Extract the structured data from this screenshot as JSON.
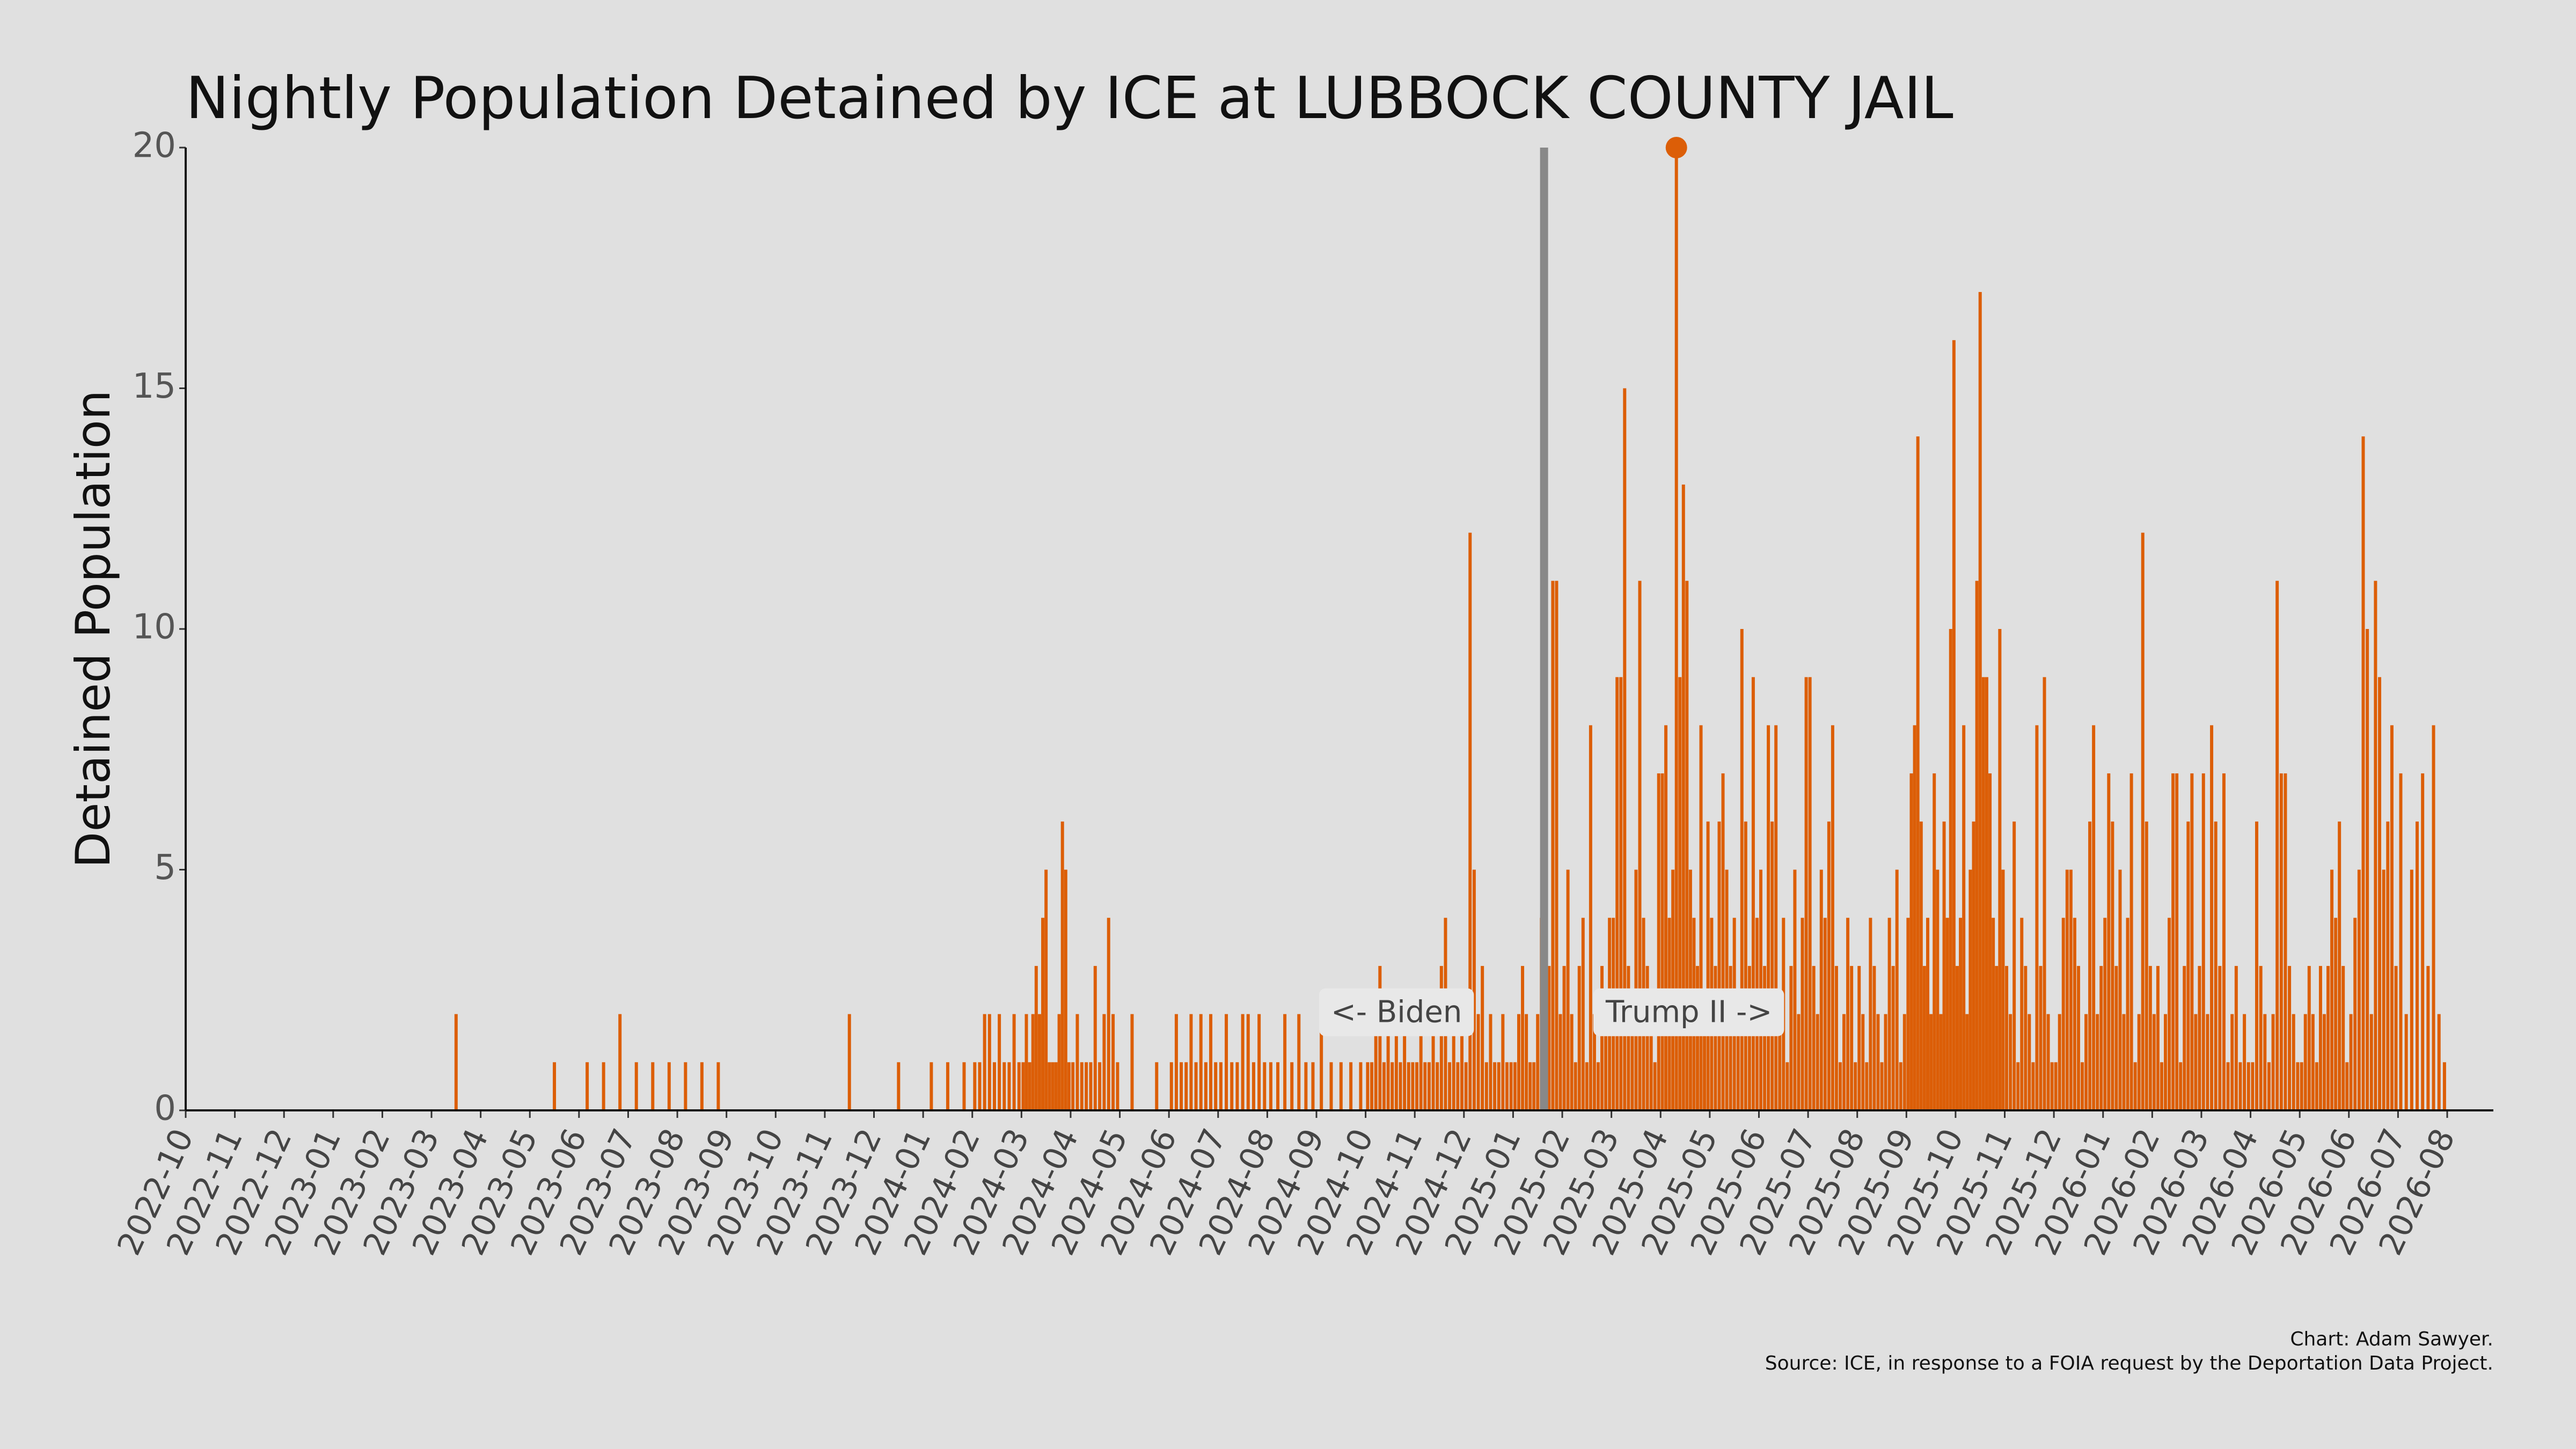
{
  "chart_data": {
    "type": "bar",
    "title": "Nightly Population Detained by ICE at LUBBOCK COUNTY JAIL",
    "y_label": "Detained Population",
    "color": "#dc5e07",
    "ylim": [
      0,
      20
    ],
    "yticks": [
      0,
      5,
      10,
      15,
      20
    ],
    "xlim": [
      "2022-10",
      "2026-08"
    ],
    "xticks": [
      "2022-10",
      "2022-11",
      "2022-12",
      "2023-01",
      "2023-02",
      "2023-03",
      "2023-04",
      "2023-05",
      "2023-06",
      "2023-07",
      "2023-08",
      "2023-09",
      "2023-10",
      "2023-11",
      "2023-12",
      "2024-01",
      "2024-02",
      "2024-03",
      "2024-04",
      "2024-05",
      "2024-06",
      "2024-07",
      "2024-08",
      "2024-09",
      "2024-10",
      "2024-11",
      "2024-12",
      "2025-01",
      "2025-02",
      "2025-03",
      "2025-04",
      "2025-05",
      "2025-06",
      "2025-07",
      "2025-08",
      "2025-09",
      "2025-10",
      "2025-11",
      "2025-12",
      "2026-01",
      "2026-02",
      "2026-03",
      "2026-04",
      "2026-05",
      "2026-06",
      "2026-07",
      "2026-08"
    ],
    "annotations": [
      "<- Biden",
      "Trump II ->"
    ],
    "caption": [
      "Chart: Adam Sawyer.",
      "Source: ICE, in response to a FOIA request by the Deportation Data Project."
    ],
    "nights": [
      {
        "month": "2023-03",
        "values": [
          2
        ]
      },
      {
        "month": "2023-05",
        "values": [
          1
        ]
      },
      {
        "month": "2023-06",
        "values": [
          1,
          1,
          2
        ]
      },
      {
        "month": "2023-07",
        "values": [
          1,
          1,
          1
        ]
      },
      {
        "month": "2023-08",
        "values": [
          1,
          1,
          1
        ]
      },
      {
        "month": "2023-11",
        "values": [
          2
        ]
      },
      {
        "month": "2023-12",
        "values": [
          1
        ]
      },
      {
        "month": "2024-01",
        "values": [
          1,
          1,
          1
        ]
      },
      {
        "month": "2024-02",
        "values": [
          1,
          1,
          2,
          2,
          1,
          2,
          1,
          1,
          2,
          1
        ]
      },
      {
        "month": "2024-03",
        "values": [
          1,
          2,
          1,
          2,
          3,
          2,
          4,
          5,
          1,
          1,
          1,
          2,
          6,
          5,
          1
        ]
      },
      {
        "month": "2024-04",
        "values": [
          1,
          2,
          1,
          1,
          1,
          3,
          1,
          2,
          4,
          2,
          1
        ]
      },
      {
        "month": "2024-05",
        "values": [
          2,
          1
        ]
      },
      {
        "month": "2024-06",
        "values": [
          1,
          2,
          1,
          1,
          2,
          1,
          2,
          1,
          2,
          1
        ]
      },
      {
        "month": "2024-07",
        "values": [
          1,
          2,
          1,
          1,
          2,
          2,
          1,
          2,
          1
        ]
      },
      {
        "month": "2024-08",
        "values": [
          1,
          1,
          2,
          1,
          2,
          1,
          1
        ]
      },
      {
        "month": "2024-09",
        "values": [
          2,
          1,
          1,
          1,
          1
        ]
      },
      {
        "month": "2024-10",
        "values": [
          1,
          1,
          2,
          3,
          1,
          2,
          1,
          2,
          1,
          2,
          1,
          1
        ]
      },
      {
        "month": "2024-11",
        "values": [
          1,
          2,
          1,
          1,
          2,
          1,
          3,
          4,
          1,
          2,
          1,
          2
        ]
      },
      {
        "month": "2024-12",
        "values": [
          1,
          12,
          5,
          2,
          3,
          1,
          2,
          1,
          1,
          2,
          1,
          1
        ]
      },
      {
        "month": "2025-01",
        "values": [
          1,
          2,
          3,
          2,
          1,
          1,
          2,
          4,
          6,
          3,
          11,
          11,
          2
        ]
      },
      {
        "month": "2025-02",
        "values": [
          3,
          5,
          2,
          1,
          3,
          4,
          1,
          8,
          2,
          1,
          3,
          2,
          4
        ]
      },
      {
        "month": "2025-03",
        "values": [
          4,
          9,
          9,
          15,
          3,
          2,
          5,
          11,
          4,
          3,
          2,
          1,
          7
        ]
      },
      {
        "month": "2025-04",
        "values": [
          7,
          8,
          4,
          5,
          20,
          9,
          13,
          11,
          5,
          4,
          3,
          8,
          2,
          6
        ]
      },
      {
        "month": "2025-05",
        "values": [
          4,
          3,
          6,
          7,
          5,
          3,
          4,
          2,
          10,
          6,
          3,
          9,
          4
        ]
      },
      {
        "month": "2025-06",
        "values": [
          5,
          3,
          8,
          6,
          8,
          2,
          4,
          1,
          3,
          5,
          2,
          4,
          9
        ]
      },
      {
        "month": "2025-07",
        "values": [
          9,
          3,
          2,
          5,
          4,
          6,
          8,
          3,
          1,
          2,
          4,
          3,
          1
        ]
      },
      {
        "month": "2025-08",
        "values": [
          3,
          2,
          1,
          4,
          3,
          2,
          1,
          2,
          4,
          3,
          5,
          1,
          2
        ]
      },
      {
        "month": "2025-09",
        "values": [
          4,
          7,
          8,
          14,
          6,
          3,
          4,
          2,
          7,
          5,
          2,
          6,
          4,
          10,
          16
        ]
      },
      {
        "month": "2025-10",
        "values": [
          3,
          4,
          8,
          2,
          5,
          6,
          11,
          17,
          9,
          9,
          7,
          4,
          3,
          10,
          5
        ]
      },
      {
        "month": "2025-11",
        "values": [
          3,
          2,
          6,
          1,
          4,
          3,
          2,
          1,
          8,
          3,
          9,
          2,
          1
        ]
      },
      {
        "month": "2025-12",
        "values": [
          1,
          2,
          4,
          5,
          5,
          4,
          3,
          1,
          2,
          6,
          8,
          2,
          3
        ]
      },
      {
        "month": "2026-01",
        "values": [
          4,
          7,
          6,
          3,
          5,
          2,
          4,
          7,
          1,
          2,
          12,
          6,
          3
        ]
      },
      {
        "month": "2026-02",
        "values": [
          2,
          3,
          1,
          2,
          4,
          7,
          7,
          1,
          3,
          6,
          7,
          2,
          3
        ]
      },
      {
        "month": "2026-03",
        "values": [
          7,
          2,
          8,
          6,
          3,
          7,
          1,
          2,
          3,
          1,
          2,
          1
        ]
      },
      {
        "month": "2026-04",
        "values": [
          1,
          6,
          3,
          2,
          1,
          2,
          11,
          7,
          7,
          3,
          2,
          1
        ]
      },
      {
        "month": "2026-05",
        "values": [
          1,
          2,
          3,
          2,
          1,
          3,
          2,
          3,
          5,
          4,
          6,
          3,
          1
        ]
      },
      {
        "month": "2026-06",
        "values": [
          2,
          4,
          5,
          14,
          10,
          2,
          11,
          9,
          5,
          6,
          8,
          3
        ]
      },
      {
        "month": "2026-07",
        "values": [
          7,
          2,
          5,
          6,
          7,
          3,
          8,
          2,
          1
        ]
      }
    ]
  }
}
